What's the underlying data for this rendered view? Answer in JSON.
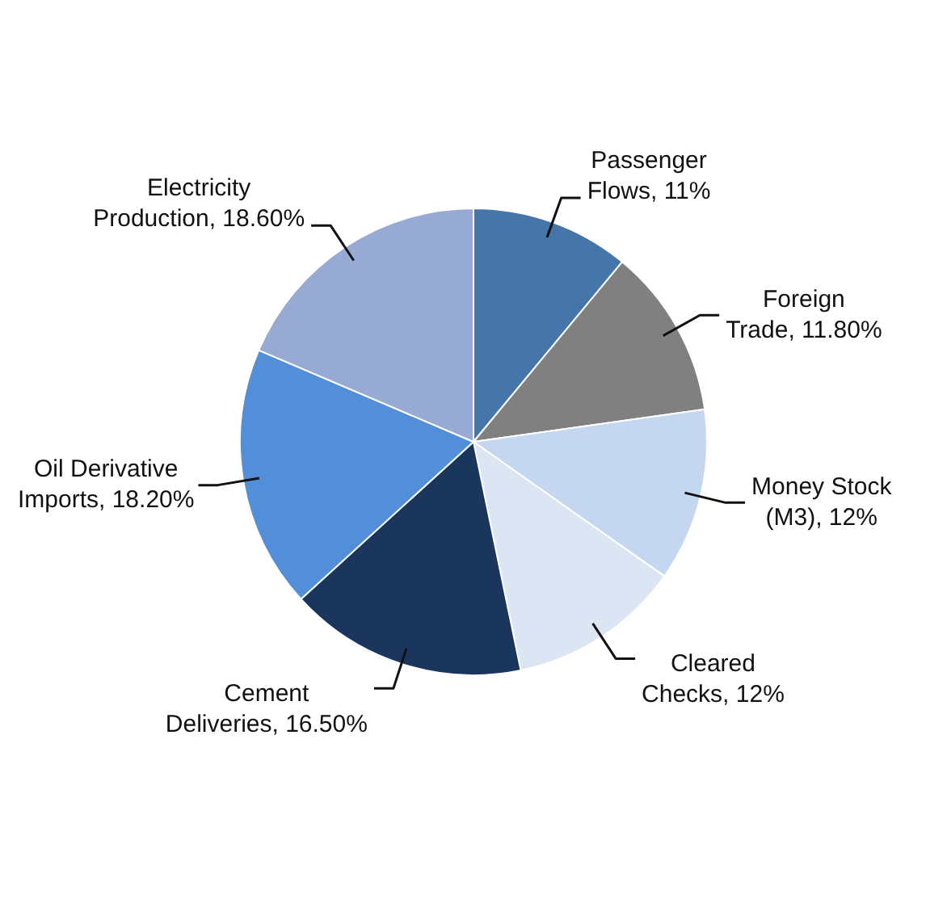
{
  "chart_data": {
    "type": "pie",
    "categories": [
      "Passenger Flows",
      "Foreign Trade",
      "Money Stock (M3)",
      "Cleared Checks",
      "Cement Deliveries",
      "Oil Derivative Imports",
      "Electricity Production"
    ],
    "values": [
      11,
      11.8,
      12,
      12,
      16.5,
      18.2,
      18.6
    ],
    "value_labels": [
      "11%",
      "11.80%",
      "12%",
      "12%",
      "16.50%",
      "18.20%",
      "18.60%"
    ],
    "colors": [
      "#4675aa",
      "#808080",
      "#c5d7f0",
      "#dce5f3",
      "#1b365d",
      "#538fd8",
      "#96aad4"
    ],
    "legend": false
  }
}
